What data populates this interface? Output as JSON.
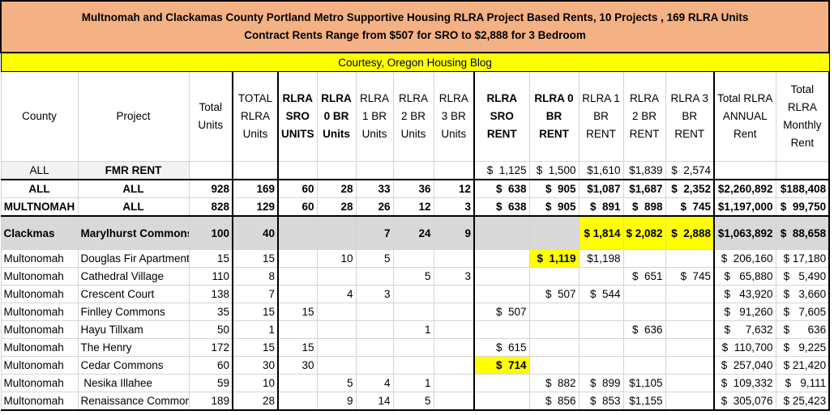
{
  "title": {
    "line1": "Multnomah and Clackamas County Portland Metro Supportive Housing RLRA Project Based Rents, 10 Projects , 169 RLRA Units",
    "line2": "Contract Rents Range from $507 for SRO to $2,888 for 3 Bedroom"
  },
  "courtesy": "Courtesy, Oregon Housing Blog",
  "headers": [
    "County",
    "Project",
    "Total Units",
    "TOTAL RLRA Units",
    "RLRA SRO UNITS",
    "RLRA 0 BR Units",
    "RLRA 1 BR Units",
    "RLRA 2 BR Units",
    "RLRA 3 BR Units",
    "RLRA SRO RENT",
    "RLRA 0 BR RENT",
    "RLRA 1 BR RENT",
    "RLRA 2 BR RENT",
    "RLRA 3 BR RENT",
    "Total RLRA ANNUAL Rent",
    "Total RLRA Monthly Rent"
  ],
  "rows": [
    {
      "type": "fmr",
      "cells": [
        "ALL",
        "FMR RENT",
        "",
        "",
        "",
        "",
        "",
        "",
        "",
        "$  1,125",
        "$  1,500",
        "$1,610",
        "$1,839",
        "$  2,574",
        "",
        ""
      ]
    },
    {
      "type": "all",
      "cells": [
        "ALL",
        "ALL",
        "928",
        "169",
        "60",
        "28",
        "33",
        "36",
        "12",
        "$  638",
        "$  905",
        "$1,087",
        "$1,687",
        "$  2,352",
        "$2,260,892",
        "$188,408"
      ]
    },
    {
      "type": "all mult",
      "cells": [
        "MULTNOMAH",
        "ALL",
        "828",
        "129",
        "60",
        "28",
        "26",
        "12",
        "3",
        "$  638",
        "$  905",
        "$  891",
        "$  898",
        "$  745",
        "$1,197,000",
        "$  99,750"
      ]
    },
    {
      "type": "clack",
      "cells": [
        "Clackmas",
        "Marylhurst Commons",
        "100",
        "40",
        "",
        "",
        "7",
        "24",
        "9",
        "",
        "",
        "$ 1,814",
        "$ 2,082",
        "$  2,888",
        "$1,063,892",
        "$  88,658"
      ],
      "yellow": [
        11,
        12,
        13
      ]
    },
    {
      "type": "",
      "cells": [
        "Multonomah",
        "Douglas Fir Apartments",
        "15",
        "15",
        "",
        "10",
        "5",
        "",
        "",
        "",
        "$  1,119",
        "$1,198",
        "",
        "",
        "$  206,160",
        "$ 17,180"
      ],
      "yellow": [
        10
      ]
    },
    {
      "type": "",
      "cells": [
        "Multonomah",
        "Cathedral Village",
        "110",
        "8",
        "",
        "",
        "",
        "5",
        "3",
        "",
        "",
        "",
        "$  651",
        "$  745",
        "$   65,880",
        "$   5,490"
      ]
    },
    {
      "type": "",
      "cells": [
        "Multonomah",
        "Crescent Court",
        "138",
        "7",
        "",
        "4",
        "3",
        "",
        "",
        "",
        "$  507",
        "$  544",
        "",
        "",
        "$   43,920",
        "$   3,660"
      ]
    },
    {
      "type": "",
      "cells": [
        "Multonomah",
        "Finlley Commons",
        "35",
        "15",
        "15",
        "",
        "",
        "",
        "",
        "$  507",
        "",
        "",
        "",
        "",
        "$   91,260",
        "$   7,605"
      ]
    },
    {
      "type": "",
      "cells": [
        "Multonomah",
        "Hayu Tillxam",
        "50",
        "1",
        "",
        "",
        "",
        "1",
        "",
        "",
        "",
        "",
        "$  636",
        "",
        "$     7,632",
        "$      636"
      ]
    },
    {
      "type": "",
      "cells": [
        "Multonomah",
        "The Henry",
        "172",
        "15",
        "15",
        "",
        "",
        "",
        "",
        "$  615",
        "",
        "",
        "",
        "",
        "$  110,700",
        "$   9,225"
      ]
    },
    {
      "type": "",
      "cells": [
        "Multonomah",
        "Cedar Commons",
        "60",
        "30",
        "30",
        "",
        "",
        "",
        "",
        "$  714",
        "",
        "",
        "",
        "",
        "$  257,040",
        "$ 21,420"
      ],
      "yellow": [
        9
      ]
    },
    {
      "type": "",
      "cells": [
        "Multonomah",
        " Nesika Illahee",
        "59",
        "10",
        "",
        "5",
        "4",
        "1",
        "",
        "",
        "$  882",
        "$  899",
        "$1,105",
        "",
        "$  109,332",
        "$   9,111"
      ]
    },
    {
      "type": "",
      "cells": [
        "Multonomah",
        "Renaissance Commons",
        "189",
        "28",
        "",
        "9",
        "14",
        "5",
        "",
        "",
        "$  856",
        "$  853",
        "$1,155",
        "",
        "$  305,076",
        "$ 25,423"
      ]
    }
  ]
}
